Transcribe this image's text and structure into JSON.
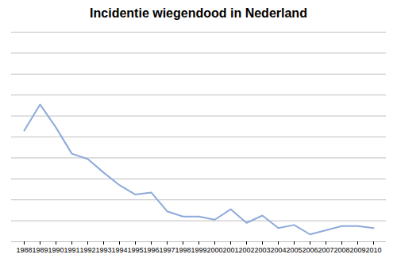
{
  "chart_data": {
    "type": "line",
    "title": "Incidentie wiegendood in Nederland",
    "categories": [
      "1988",
      "1989",
      "1990",
      "1991",
      "1992",
      "1993",
      "1994",
      "1995",
      "1996",
      "1997",
      "1998",
      "1999",
      "2000",
      "2001",
      "2002",
      "2003",
      "2004",
      "2005",
      "2006",
      "2007",
      "2008",
      "2009",
      "2010"
    ],
    "values": [
      1.06,
      1.31,
      1.09,
      0.84,
      0.79,
      0.66,
      0.54,
      0.45,
      0.47,
      0.29,
      0.24,
      0.24,
      0.21,
      0.31,
      0.18,
      0.25,
      0.13,
      0.16,
      0.07,
      0.11,
      0.15,
      0.15,
      0.13
    ],
    "color": "#8eaadb",
    "ylim": [
      0,
      2
    ],
    "yticks": [
      0,
      0.2,
      0.4,
      0.6,
      0.8,
      1,
      1.2,
      1.4,
      1.6,
      1.8,
      2
    ],
    "grid": true,
    "tick_labels": "x"
  }
}
